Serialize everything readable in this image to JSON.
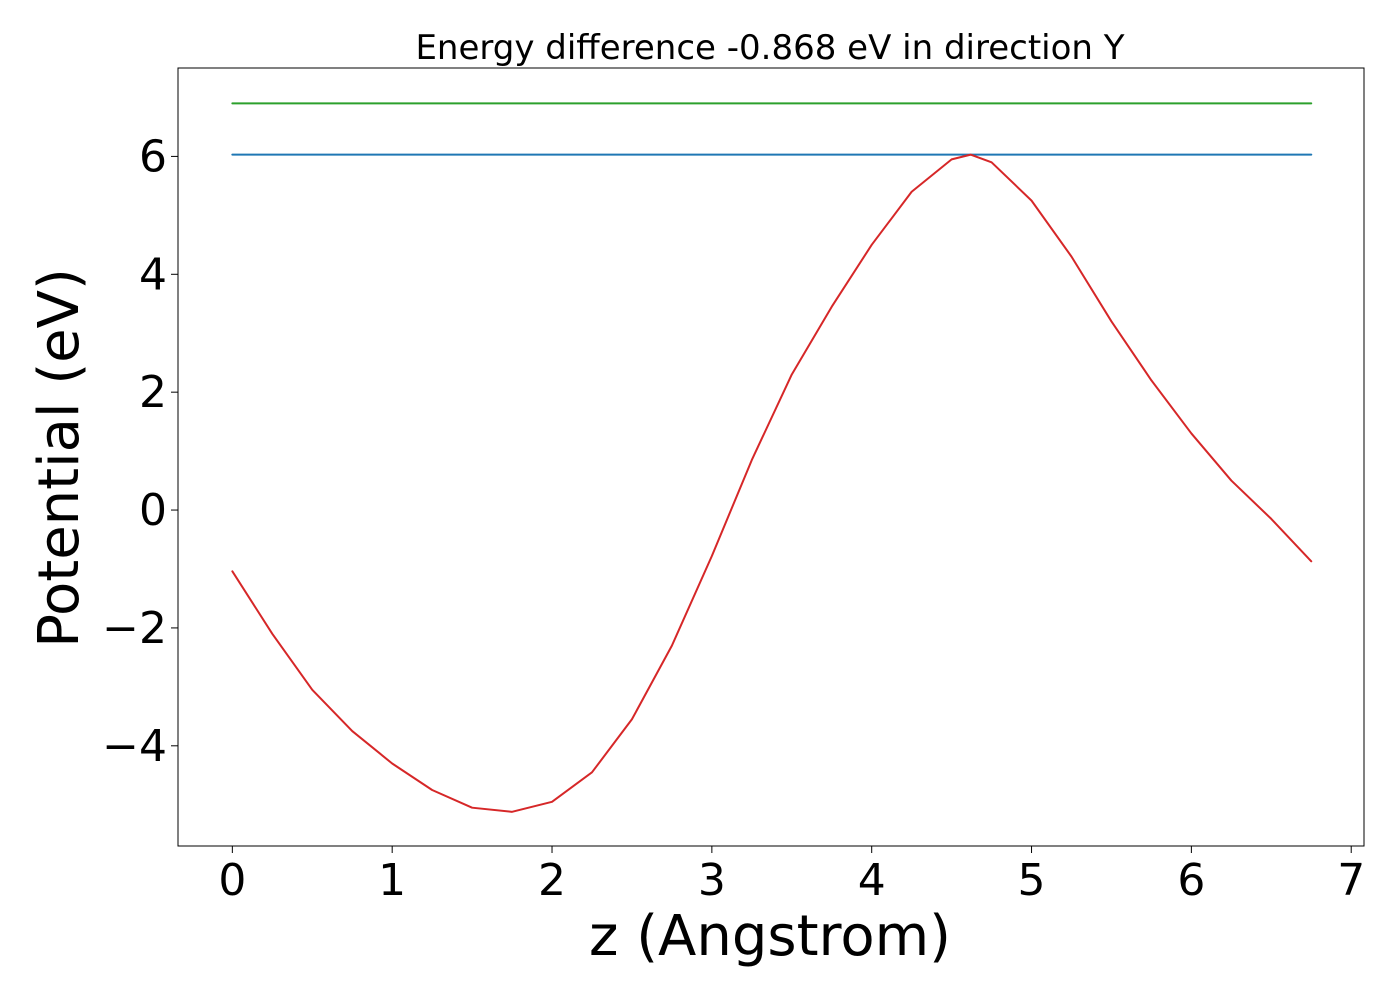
{
  "chart_data": {
    "type": "line",
    "title": "Energy difference -0.868 eV in direction Y",
    "xlabel": "z (Angstrom)",
    "ylabel": "Potential (eV)",
    "xlim": [
      -0.34,
      7.08
    ],
    "ylim": [
      -5.7,
      7.5
    ],
    "xticks": [
      0,
      1,
      2,
      3,
      4,
      5,
      6,
      7
    ],
    "xtick_labels": [
      "0",
      "1",
      "2",
      "3",
      "4",
      "5",
      "6",
      "7"
    ],
    "yticks": [
      -4,
      -2,
      0,
      2,
      4,
      6
    ],
    "ytick_labels": [
      "−4",
      "−2",
      "0",
      "2",
      "4",
      "6"
    ],
    "grid": false,
    "series": [
      {
        "color": "#2ca02c",
        "x": [
          0,
          6.75
        ],
        "y": [
          6.9,
          6.9
        ]
      },
      {
        "color": "#1f77b4",
        "x": [
          0,
          6.75
        ],
        "y": [
          6.03,
          6.03
        ]
      },
      {
        "color": "#d62728",
        "x": [
          0,
          0.25,
          0.5,
          0.75,
          1.0,
          1.25,
          1.5,
          1.75,
          2.0,
          2.25,
          2.5,
          2.75,
          3.0,
          3.25,
          3.5,
          3.75,
          4.0,
          4.25,
          4.5,
          4.62,
          4.75,
          5.0,
          5.25,
          5.5,
          5.75,
          6.0,
          6.25,
          6.5,
          6.75
        ],
        "y": [
          -1.04,
          -2.1,
          -3.05,
          -3.75,
          -4.3,
          -4.75,
          -5.05,
          -5.12,
          -4.95,
          -4.45,
          -3.55,
          -2.3,
          -0.78,
          0.85,
          2.3,
          3.45,
          4.5,
          5.4,
          5.95,
          6.03,
          5.9,
          5.25,
          4.3,
          3.2,
          2.2,
          1.3,
          0.5,
          -0.15,
          -0.87
        ]
      }
    ]
  }
}
